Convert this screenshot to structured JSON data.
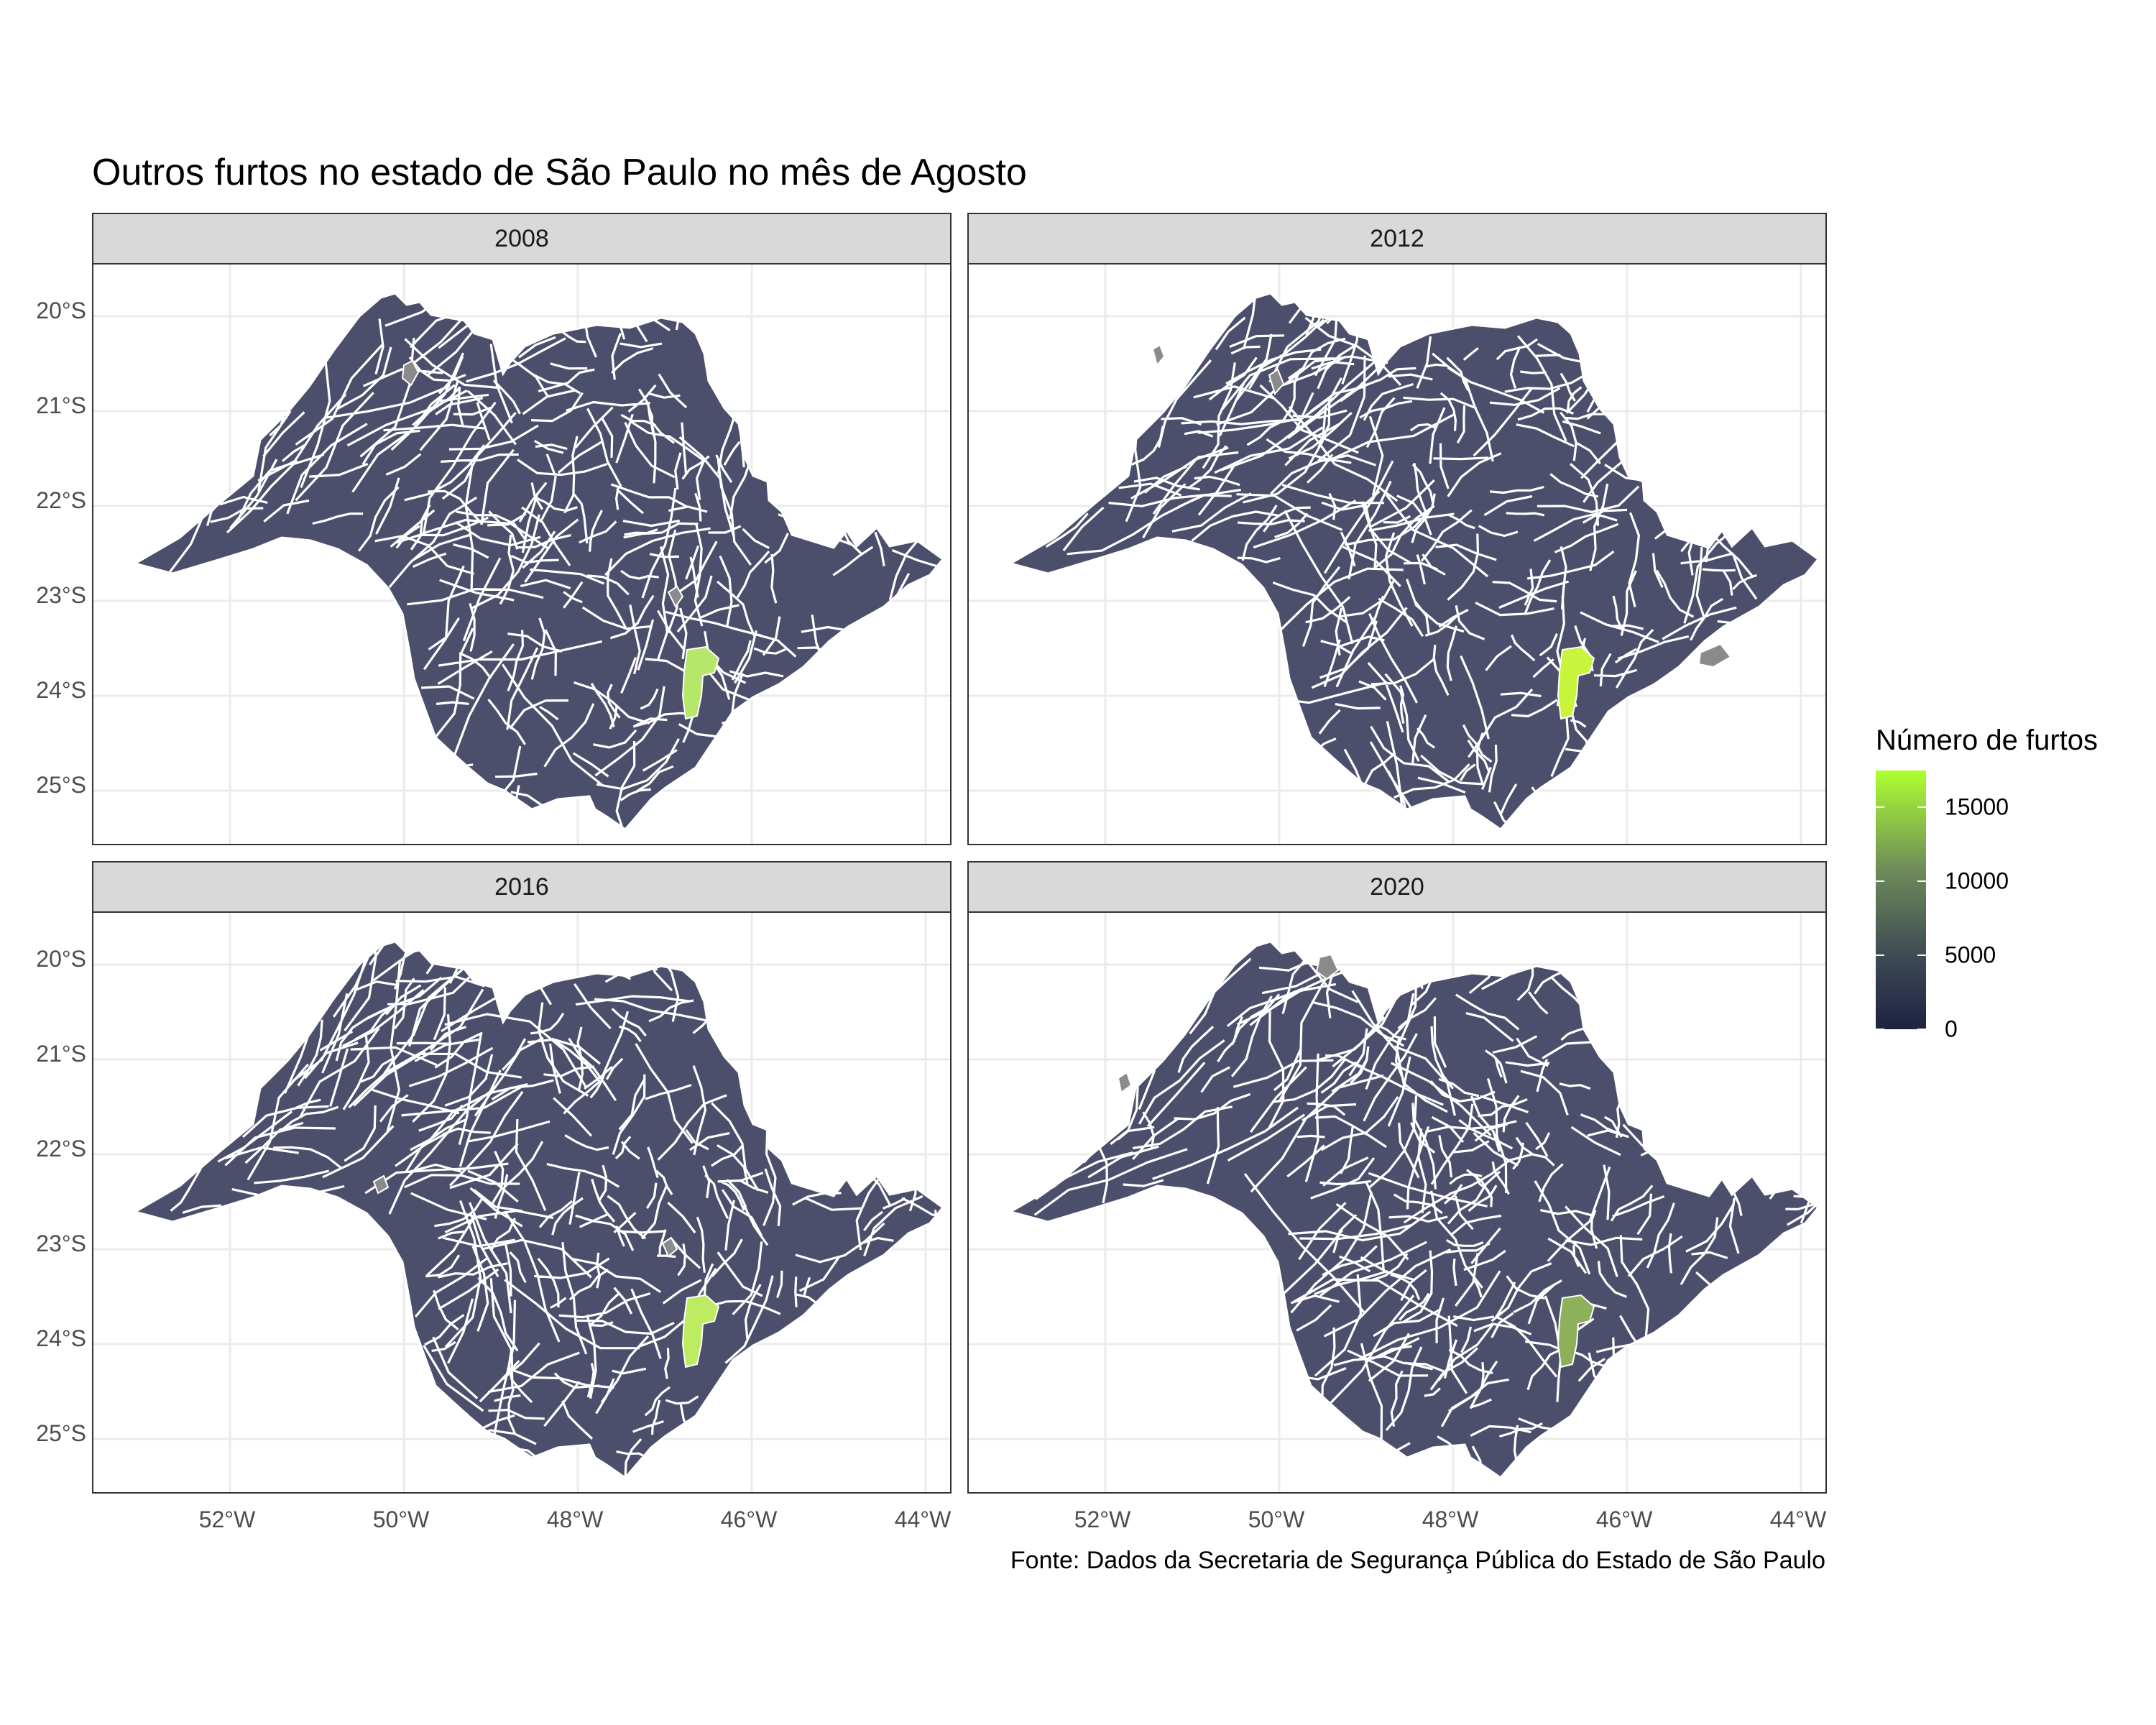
{
  "title": "Outros furtos no estado de São Paulo no mês de Agosto",
  "caption": "Fonte: Dados da Secretaria de Segurança Pública do Estado de São Paulo",
  "axis": {
    "y_labels": [
      "20°S",
      "21°S",
      "22°S",
      "23°S",
      "24°S",
      "25°S"
    ],
    "x_labels": [
      "52°W",
      "50°W",
      "48°W",
      "46°W",
      "44°W"
    ]
  },
  "legend": {
    "title": "Número de furtos",
    "labels": [
      "15000",
      "10000",
      "5000",
      "0"
    ],
    "values": [
      15000,
      10000,
      5000,
      0
    ],
    "max": 17500,
    "low_color": "#1e2240",
    "high_color": "#adff2f"
  },
  "panels": [
    {
      "year": "2008",
      "hotspot_color": "#b5e86a"
    },
    {
      "year": "2012",
      "hotspot_color": "#c8f53c"
    },
    {
      "year": "2016",
      "hotspot_color": "#bdeb62"
    },
    {
      "year": "2020",
      "hotspot_color": "#8fb05a"
    }
  ],
  "colors": {
    "municipality_fill": "#4b4f6b",
    "border": "#ffffff",
    "grid": "#ebebeb",
    "strip_bg": "#d9d9d9",
    "medium_fill": "#8a8a8a"
  }
}
